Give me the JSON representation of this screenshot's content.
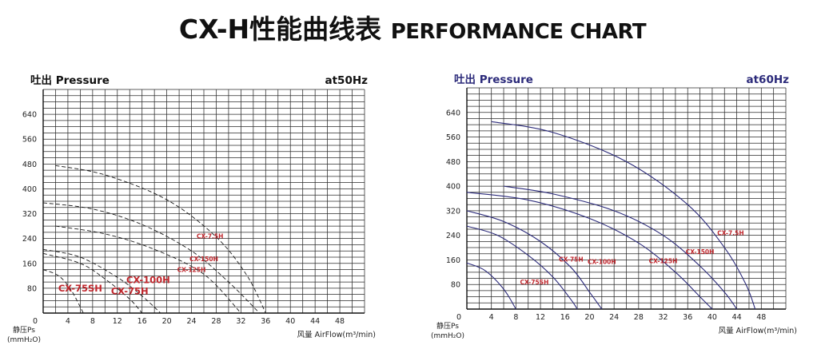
{
  "title": {
    "cn": "CX-H性能曲线表",
    "en": "PERFORMANCE CHART"
  },
  "chart_data": [
    {
      "type": "line",
      "panel_label": "吐出 Pressure",
      "frequency": "at50Hz",
      "color": "#1a1a1a",
      "label_color": "#c0272d",
      "line_style": "dashed",
      "y_axis_label": "静压Ps",
      "y_axis_unit": "(mmH₂O)",
      "x_axis_label": "风量 AirFlow(m³/min)",
      "xlim": [
        0,
        52
      ],
      "ylim": [
        0,
        720
      ],
      "x_ticks": [
        0,
        4,
        8,
        12,
        16,
        20,
        24,
        28,
        32,
        36,
        40,
        44,
        48
      ],
      "y_ticks": [
        80,
        160,
        240,
        320,
        400,
        480,
        560,
        640
      ],
      "series": [
        {
          "name": "CX-7.5H",
          "x": [
            2,
            10,
            20,
            28,
            33,
            36
          ],
          "y": [
            475,
            445,
            365,
            245,
            120,
            0
          ],
          "label_x": 27,
          "label_y": 240,
          "label_size": "small"
        },
        {
          "name": "CX-150H",
          "x": [
            0,
            8,
            16,
            24,
            30,
            35
          ],
          "y": [
            355,
            335,
            285,
            200,
            100,
            0
          ],
          "label_x": 26,
          "label_y": 167,
          "label_size": "small"
        },
        {
          "name": "CX-125H",
          "x": [
            2,
            10,
            18,
            26,
            32
          ],
          "y": [
            280,
            255,
            205,
            125,
            0
          ],
          "label_x": 24,
          "label_y": 133,
          "label_size": "small"
        },
        {
          "name": "CX-100H",
          "x": [
            0,
            6,
            12,
            16,
            19
          ],
          "y": [
            205,
            180,
            115,
            55,
            0
          ],
          "label_x": 17,
          "label_y": 97,
          "label_size": "large"
        },
        {
          "name": "CX-75H",
          "x": [
            0,
            6,
            10,
            14,
            16
          ],
          "y": [
            192,
            160,
            110,
            45,
            0
          ],
          "label_x": 14,
          "label_y": 60,
          "label_size": "large"
        },
        {
          "name": "CX-75SH",
          "x": [
            0,
            2.5,
            4.5,
            6.5
          ],
          "y": [
            140,
            120,
            75,
            0
          ],
          "label_x": 6,
          "label_y": 70,
          "label_size": "large"
        }
      ]
    },
    {
      "type": "line",
      "panel_label": "吐出 Pressure",
      "frequency": "at60Hz",
      "color": "#2b2a7a",
      "label_color": "#c0272d",
      "line_style": "solid",
      "y_axis_label": "静压Ps",
      "y_axis_unit": "(mmH₂O)",
      "x_axis_label": "风量 AirFlow(m³/min)",
      "xlim": [
        0,
        52
      ],
      "ylim": [
        0,
        720
      ],
      "x_ticks": [
        0,
        4,
        8,
        12,
        16,
        20,
        24,
        28,
        32,
        36,
        40,
        44,
        48
      ],
      "y_ticks": [
        80,
        160,
        240,
        320,
        400,
        480,
        560,
        640
      ],
      "series": [
        {
          "name": "CX-7.5H",
          "x": [
            4,
            14,
            26,
            36,
            42,
            45.5,
            47
          ],
          "y": [
            610,
            575,
            480,
            340,
            200,
            80,
            0
          ],
          "label_x": 43,
          "label_y": 240,
          "label_size": "small"
        },
        {
          "name": "CX-150H",
          "x": [
            6,
            14,
            24,
            32,
            38,
            42,
            44
          ],
          "y": [
            400,
            375,
            320,
            240,
            140,
            55,
            0
          ],
          "label_x": 38,
          "label_y": 180,
          "label_size": "small"
        },
        {
          "name": "CX-125H",
          "x": [
            0,
            10,
            20,
            28,
            34,
            38,
            40
          ],
          "y": [
            380,
            355,
            295,
            215,
            120,
            40,
            0
          ],
          "label_x": 32,
          "label_y": 150,
          "label_size": "small"
        },
        {
          "name": "CX-100H",
          "x": [
            0,
            6,
            12,
            17,
            20,
            22
          ],
          "y": [
            320,
            285,
            220,
            135,
            55,
            0
          ],
          "label_x": 22,
          "label_y": 147,
          "label_size": "small"
        },
        {
          "name": "CX-75H",
          "x": [
            0,
            5,
            10,
            14,
            17,
            18
          ],
          "y": [
            270,
            240,
            175,
            105,
            30,
            0
          ],
          "label_x": 17,
          "label_y": 155,
          "label_size": "small"
        },
        {
          "name": "CX-75SH",
          "x": [
            0,
            3,
            6,
            8
          ],
          "y": [
            150,
            125,
            65,
            0
          ],
          "label_x": 11,
          "label_y": 80,
          "label_size": "small"
        }
      ]
    }
  ]
}
